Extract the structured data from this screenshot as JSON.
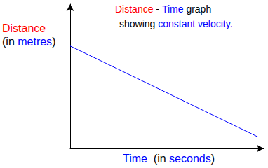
{
  "chart_data": {
    "type": "line",
    "title": [
      [
        {
          "text": "Distance",
          "color": "#ff0000"
        },
        {
          "text": " - ",
          "color": "#000000"
        },
        {
          "text": "Time",
          "color": "#0000ff"
        },
        {
          "text": " graph",
          "color": "#000000"
        }
      ],
      [
        {
          "text": "showing ",
          "color": "#000000"
        },
        {
          "text": "constant velocity.",
          "color": "#0000ff"
        }
      ]
    ],
    "y_label": [
      [
        {
          "text": "Distance",
          "color": "#ff0000"
        }
      ],
      [
        {
          "text": "(in ",
          "color": "#000000"
        },
        {
          "text": "metres",
          "color": "#0000ff"
        },
        {
          "text": ")",
          "color": "#000000"
        }
      ]
    ],
    "x_label": [
      [
        {
          "text": "Time",
          "color": "#0000ff"
        },
        {
          "text": "  (in ",
          "color": "#000000"
        },
        {
          "text": "seconds",
          "color": "#0000ff"
        },
        {
          "text": ")",
          "color": "#000000"
        }
      ]
    ],
    "x": [
      0,
      9.7
    ],
    "values": [
      7.1,
      0.8
    ],
    "color": "#0000ff",
    "xlim": [
      0,
      10
    ],
    "ylim": [
      0,
      10
    ],
    "tick_labels": false,
    "grid": false
  }
}
